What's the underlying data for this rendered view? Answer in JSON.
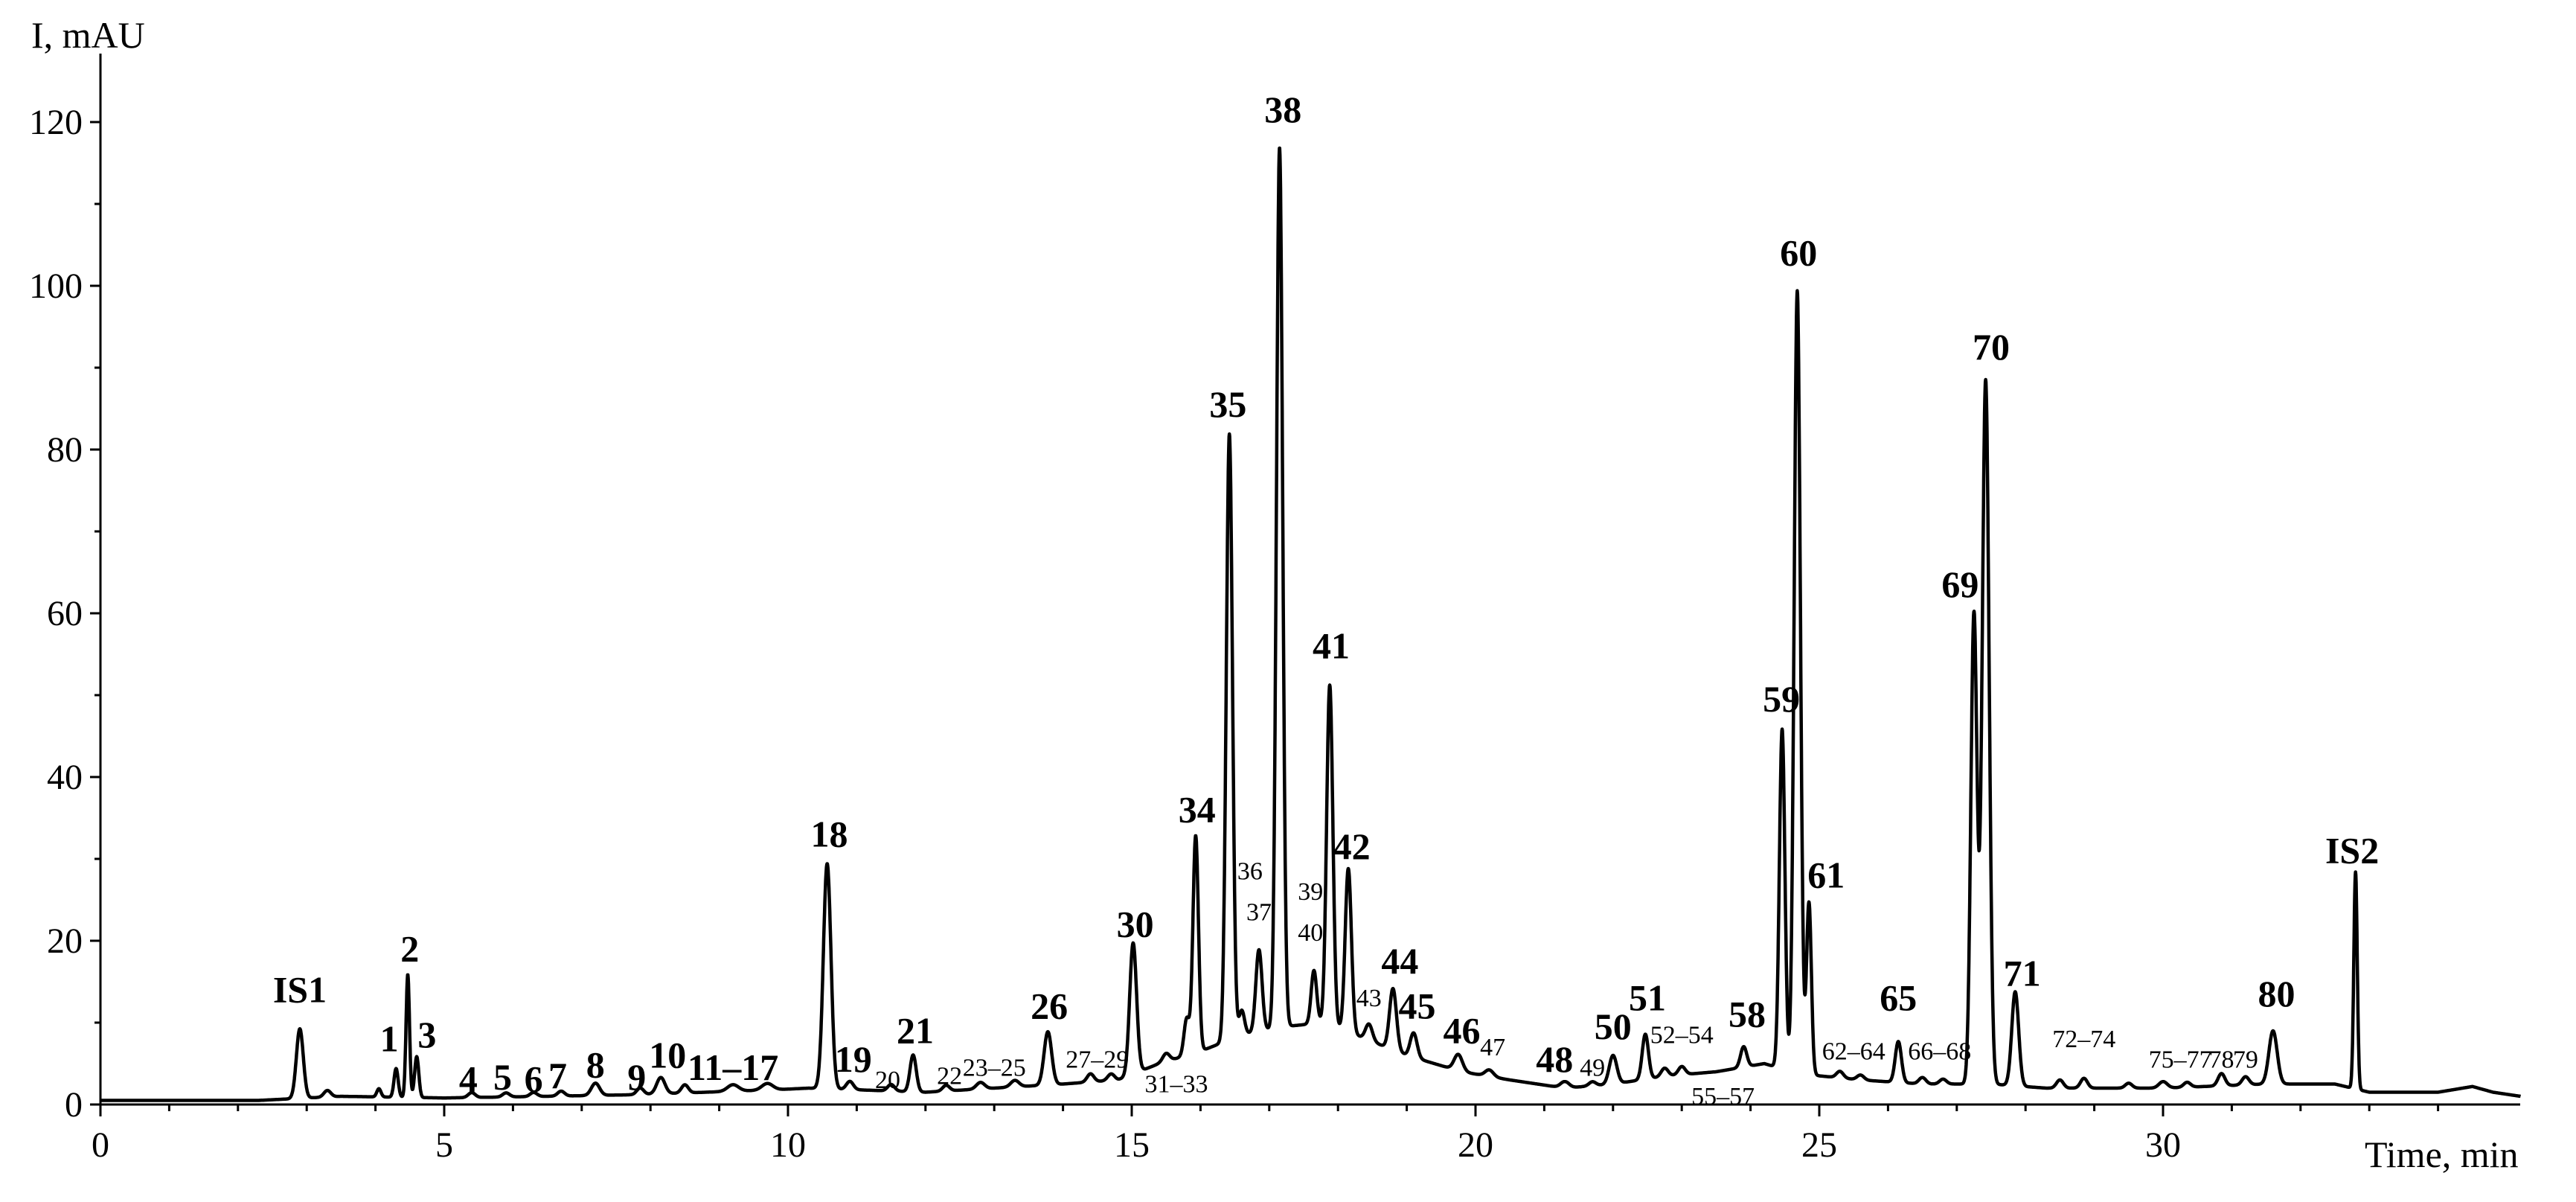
{
  "chart_data": {
    "type": "line",
    "title": "",
    "xlabel": "Time, min",
    "ylabel": "I, mAU",
    "xlim": [
      0,
      35.2
    ],
    "ylim": [
      0,
      125
    ],
    "x_ticks": [
      0,
      5,
      10,
      15,
      20,
      25,
      30
    ],
    "y_ticks": [
      0,
      20,
      40,
      60,
      80,
      100,
      120
    ],
    "grid": false,
    "line_color": "#000000",
    "baseline": [
      [
        0,
        0.5
      ],
      [
        2.3,
        0.5
      ],
      [
        3.5,
        1.0
      ],
      [
        5.0,
        0.8
      ],
      [
        6.5,
        1.0
      ],
      [
        7.8,
        1.2
      ],
      [
        8.8,
        1.5
      ],
      [
        9.8,
        1.8
      ],
      [
        10.3,
        2.0
      ],
      [
        11.0,
        1.8
      ],
      [
        12.0,
        1.5
      ],
      [
        13.0,
        2.0
      ],
      [
        14.0,
        2.5
      ],
      [
        14.8,
        3.0
      ],
      [
        15.4,
        5.0
      ],
      [
        16.0,
        6.5
      ],
      [
        16.6,
        8.5
      ],
      [
        17.2,
        9.5
      ],
      [
        17.8,
        10.0
      ],
      [
        18.4,
        8.0
      ],
      [
        19.0,
        6.0
      ],
      [
        19.8,
        4.0
      ],
      [
        20.5,
        3.0
      ],
      [
        21.3,
        2.0
      ],
      [
        22.0,
        2.5
      ],
      [
        22.8,
        3.5
      ],
      [
        23.5,
        4.0
      ],
      [
        24.2,
        5.0
      ],
      [
        24.6,
        4.0
      ],
      [
        25.0,
        3.5
      ],
      [
        25.6,
        3.0
      ],
      [
        26.5,
        2.5
      ],
      [
        27.5,
        2.5
      ],
      [
        28.3,
        2.0
      ],
      [
        29.0,
        2.0
      ],
      [
        30.0,
        2.0
      ],
      [
        31.5,
        2.5
      ],
      [
        32.5,
        2.5
      ],
      [
        33.0,
        1.5
      ],
      [
        34.0,
        1.5
      ],
      [
        34.5,
        2.2
      ],
      [
        34.8,
        1.5
      ],
      [
        35.2,
        1.0
      ]
    ],
    "peaks": [
      {
        "t": 2.9,
        "h": 8.5,
        "w": 0.05
      },
      {
        "t": 3.3,
        "h": 0.8,
        "w": 0.05
      },
      {
        "t": 4.05,
        "h": 1.0,
        "w": 0.03
      },
      {
        "t": 4.3,
        "h": 3.5,
        "w": 0.03
      },
      {
        "t": 4.47,
        "h": 15.0,
        "w": 0.025
      },
      {
        "t": 4.6,
        "h": 5.0,
        "w": 0.03
      },
      {
        "t": 5.4,
        "h": 0.6,
        "w": 0.05
      },
      {
        "t": 5.9,
        "h": 0.5,
        "w": 0.05
      },
      {
        "t": 6.3,
        "h": 0.5,
        "w": 0.05
      },
      {
        "t": 6.7,
        "h": 0.6,
        "w": 0.05
      },
      {
        "t": 7.2,
        "h": 1.5,
        "w": 0.06
      },
      {
        "t": 7.85,
        "h": 0.8,
        "w": 0.05
      },
      {
        "t": 8.15,
        "h": 2.0,
        "w": 0.06
      },
      {
        "t": 8.5,
        "h": 1.0,
        "w": 0.05
      },
      {
        "t": 9.2,
        "h": 0.8,
        "w": 0.08
      },
      {
        "t": 9.7,
        "h": 0.8,
        "w": 0.08
      },
      {
        "t": 10.57,
        "h": 27.5,
        "w": 0.055
      },
      {
        "t": 10.9,
        "h": 1.0,
        "w": 0.05
      },
      {
        "t": 11.5,
        "h": 0.8,
        "w": 0.05
      },
      {
        "t": 11.82,
        "h": 4.5,
        "w": 0.045
      },
      {
        "t": 12.3,
        "h": 0.7,
        "w": 0.05
      },
      {
        "t": 12.8,
        "h": 0.8,
        "w": 0.06
      },
      {
        "t": 13.3,
        "h": 0.8,
        "w": 0.06
      },
      {
        "t": 13.78,
        "h": 6.5,
        "w": 0.055
      },
      {
        "t": 14.4,
        "h": 1.0,
        "w": 0.05
      },
      {
        "t": 14.7,
        "h": 0.8,
        "w": 0.05
      },
      {
        "t": 15.02,
        "h": 16.0,
        "w": 0.05
      },
      {
        "t": 15.5,
        "h": 1.0,
        "w": 0.05
      },
      {
        "t": 15.8,
        "h": 4.5,
        "w": 0.04
      },
      {
        "t": 15.93,
        "h": 26.5,
        "w": 0.04
      },
      {
        "t": 16.42,
        "h": 74.0,
        "w": 0.045
      },
      {
        "t": 16.6,
        "h": 3.0,
        "w": 0.04
      },
      {
        "t": 16.85,
        "h": 10.0,
        "w": 0.045
      },
      {
        "t": 17.15,
        "h": 107.5,
        "w": 0.045
      },
      {
        "t": 17.65,
        "h": 6.5,
        "w": 0.04
      },
      {
        "t": 17.88,
        "h": 41.5,
        "w": 0.045
      },
      {
        "t": 18.15,
        "h": 20.0,
        "w": 0.045
      },
      {
        "t": 18.45,
        "h": 2.0,
        "w": 0.05
      },
      {
        "t": 18.8,
        "h": 7.5,
        "w": 0.05
      },
      {
        "t": 19.1,
        "h": 3.0,
        "w": 0.05
      },
      {
        "t": 19.75,
        "h": 2.0,
        "w": 0.06
      },
      {
        "t": 20.2,
        "h": 0.8,
        "w": 0.06
      },
      {
        "t": 21.3,
        "h": 0.8,
        "w": 0.06
      },
      {
        "t": 21.7,
        "h": 0.5,
        "w": 0.05
      },
      {
        "t": 22.0,
        "h": 3.5,
        "w": 0.055
      },
      {
        "t": 22.47,
        "h": 5.5,
        "w": 0.045
      },
      {
        "t": 22.75,
        "h": 1.0,
        "w": 0.05
      },
      {
        "t": 23.0,
        "h": 1.0,
        "w": 0.05
      },
      {
        "t": 23.9,
        "h": 2.5,
        "w": 0.045
      },
      {
        "t": 24.46,
        "h": 41.5,
        "w": 0.04
      },
      {
        "t": 24.68,
        "h": 95.5,
        "w": 0.045
      },
      {
        "t": 24.85,
        "h": 21.0,
        "w": 0.035
      },
      {
        "t": 25.3,
        "h": 0.8,
        "w": 0.05
      },
      {
        "t": 25.6,
        "h": 0.6,
        "w": 0.05
      },
      {
        "t": 26.15,
        "h": 5.0,
        "w": 0.045
      },
      {
        "t": 26.5,
        "h": 0.8,
        "w": 0.05
      },
      {
        "t": 26.8,
        "h": 0.6,
        "w": 0.05
      },
      {
        "t": 27.25,
        "h": 57.5,
        "w": 0.045
      },
      {
        "t": 27.42,
        "h": 86.0,
        "w": 0.05
      },
      {
        "t": 27.85,
        "h": 11.5,
        "w": 0.05
      },
      {
        "t": 28.5,
        "h": 1.0,
        "w": 0.05
      },
      {
        "t": 28.85,
        "h": 1.2,
        "w": 0.05
      },
      {
        "t": 29.5,
        "h": 0.6,
        "w": 0.05
      },
      {
        "t": 30.0,
        "h": 0.8,
        "w": 0.06
      },
      {
        "t": 30.35,
        "h": 0.6,
        "w": 0.05
      },
      {
        "t": 30.85,
        "h": 1.5,
        "w": 0.05
      },
      {
        "t": 31.2,
        "h": 1.0,
        "w": 0.05
      },
      {
        "t": 31.6,
        "h": 6.5,
        "w": 0.06
      },
      {
        "t": 32.8,
        "h": 26.5,
        "w": 0.025
      }
    ],
    "peak_labels": [
      {
        "text": "IS1",
        "t": 2.9,
        "y": 12.5,
        "size": "big"
      },
      {
        "text": "1",
        "t": 4.2,
        "y": 6.5,
        "size": "big"
      },
      {
        "text": "2",
        "t": 4.5,
        "y": 17.5,
        "size": "big"
      },
      {
        "text": "3",
        "t": 4.75,
        "y": 7.0,
        "size": "big"
      },
      {
        "text": "4",
        "t": 5.35,
        "y": 1.6,
        "size": "big"
      },
      {
        "text": "5",
        "t": 5.85,
        "y": 1.8,
        "size": "big"
      },
      {
        "text": "6",
        "t": 6.3,
        "y": 1.6,
        "size": "big"
      },
      {
        "text": "7",
        "t": 6.65,
        "y": 2.0,
        "size": "big"
      },
      {
        "text": "8",
        "t": 7.2,
        "y": 3.3,
        "size": "big"
      },
      {
        "text": "9",
        "t": 7.8,
        "y": 1.8,
        "size": "big"
      },
      {
        "text": "10",
        "t": 8.25,
        "y": 4.5,
        "size": "big"
      },
      {
        "text": "11–17",
        "t": 9.2,
        "y": 3.0,
        "size": "big"
      },
      {
        "text": "18",
        "t": 10.6,
        "y": 31.5,
        "size": "big"
      },
      {
        "text": "19",
        "t": 10.95,
        "y": 4.0,
        "size": "big"
      },
      {
        "text": "20",
        "t": 11.45,
        "y": 2.0,
        "size": "small"
      },
      {
        "text": "21",
        "t": 11.85,
        "y": 7.5,
        "size": "big"
      },
      {
        "text": "22",
        "t": 12.35,
        "y": 2.5,
        "size": "small"
      },
      {
        "text": "23–25",
        "t": 13.0,
        "y": 3.5,
        "size": "small"
      },
      {
        "text": "26",
        "t": 13.8,
        "y": 10.5,
        "size": "big"
      },
      {
        "text": "27–29",
        "t": 14.5,
        "y": 4.5,
        "size": "small"
      },
      {
        "text": "30",
        "t": 15.05,
        "y": 20.5,
        "size": "big"
      },
      {
        "text": "31–33",
        "t": 15.65,
        "y": 1.5,
        "size": "small"
      },
      {
        "text": "34",
        "t": 15.95,
        "y": 34.5,
        "size": "big"
      },
      {
        "text": "35",
        "t": 16.4,
        "y": 84.0,
        "size": "big"
      },
      {
        "text": "36",
        "t": 16.72,
        "y": 27.5,
        "size": "small"
      },
      {
        "text": "37",
        "t": 16.85,
        "y": 22.5,
        "size": "small"
      },
      {
        "text": "38",
        "t": 17.2,
        "y": 120.0,
        "size": "big"
      },
      {
        "text": "39",
        "t": 17.6,
        "y": 25.0,
        "size": "small"
      },
      {
        "text": "40",
        "t": 17.6,
        "y": 20.0,
        "size": "small"
      },
      {
        "text": "41",
        "t": 17.9,
        "y": 54.5,
        "size": "big"
      },
      {
        "text": "42",
        "t": 18.2,
        "y": 30.0,
        "size": "big"
      },
      {
        "text": "43",
        "t": 18.45,
        "y": 12.0,
        "size": "small"
      },
      {
        "text": "44",
        "t": 18.9,
        "y": 16.0,
        "size": "big"
      },
      {
        "text": "45",
        "t": 19.15,
        "y": 10.5,
        "size": "big"
      },
      {
        "text": "46",
        "t": 19.8,
        "y": 7.5,
        "size": "big"
      },
      {
        "text": "47",
        "t": 20.25,
        "y": 6.0,
        "size": "small"
      },
      {
        "text": "48",
        "t": 21.15,
        "y": 4.0,
        "size": "big"
      },
      {
        "text": "49",
        "t": 21.7,
        "y": 3.5,
        "size": "small"
      },
      {
        "text": "50",
        "t": 22.0,
        "y": 8.0,
        "size": "big"
      },
      {
        "text": "51",
        "t": 22.5,
        "y": 11.5,
        "size": "big"
      },
      {
        "text": "52–54",
        "t": 23.0,
        "y": 7.5,
        "size": "small"
      },
      {
        "text": "55–57",
        "t": 23.6,
        "y": 0.0,
        "size": "small"
      },
      {
        "text": "58",
        "t": 23.95,
        "y": 9.5,
        "size": "big"
      },
      {
        "text": "59",
        "t": 24.45,
        "y": 48.0,
        "size": "big"
      },
      {
        "text": "60",
        "t": 24.7,
        "y": 102.5,
        "size": "big"
      },
      {
        "text": "61",
        "t": 25.1,
        "y": 26.5,
        "size": "big"
      },
      {
        "text": "62–64",
        "t": 25.5,
        "y": 5.5,
        "size": "small"
      },
      {
        "text": "65",
        "t": 26.15,
        "y": 11.5,
        "size": "big"
      },
      {
        "text": "66–68",
        "t": 26.75,
        "y": 5.5,
        "size": "small"
      },
      {
        "text": "69",
        "t": 27.05,
        "y": 62.0,
        "size": "big"
      },
      {
        "text": "70",
        "t": 27.5,
        "y": 91.0,
        "size": "big"
      },
      {
        "text": "71",
        "t": 27.95,
        "y": 14.5,
        "size": "big"
      },
      {
        "text": "72–74",
        "t": 28.85,
        "y": 7.0,
        "size": "small"
      },
      {
        "text": "75–77",
        "t": 30.25,
        "y": 4.5,
        "size": "small"
      },
      {
        "text": "78",
        "t": 30.85,
        "y": 4.5,
        "size": "small"
      },
      {
        "text": "79",
        "t": 31.2,
        "y": 4.5,
        "size": "small"
      },
      {
        "text": "80",
        "t": 31.65,
        "y": 12.0,
        "size": "big"
      },
      {
        "text": "IS2",
        "t": 32.75,
        "y": 29.5,
        "size": "big"
      }
    ]
  }
}
